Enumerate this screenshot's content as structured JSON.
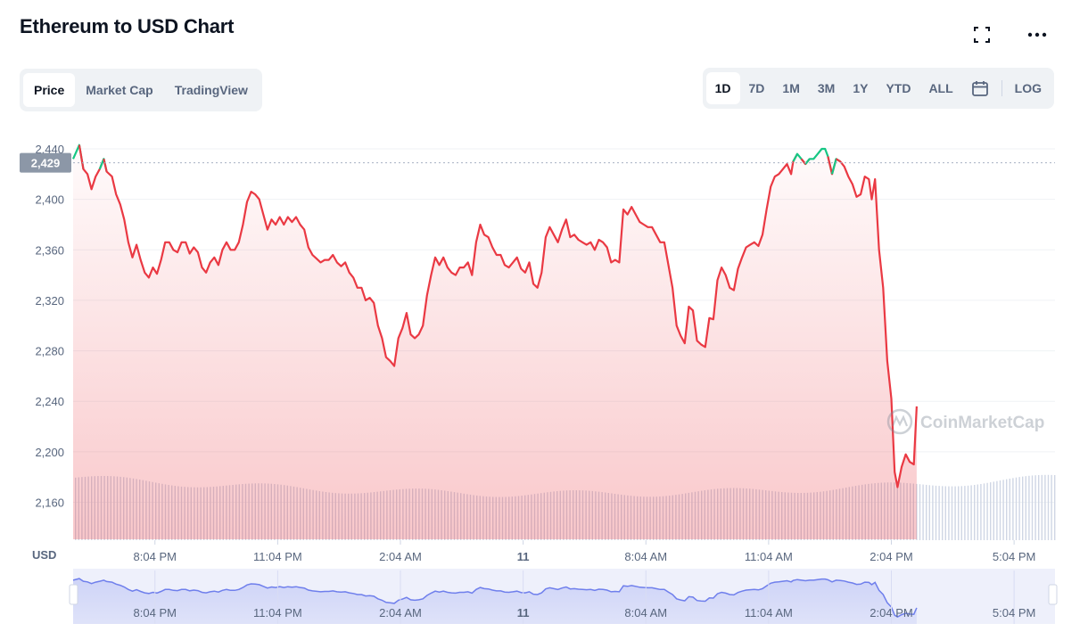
{
  "header": {
    "title": "Ethereum to USD Chart"
  },
  "tabs": [
    "Price",
    "Market Cap",
    "TradingView"
  ],
  "ranges": [
    "1D",
    "7D",
    "1M",
    "3M",
    "1Y",
    "YTD",
    "ALL"
  ],
  "log_label": "LOG",
  "icons": {
    "fullscreen": "fullscreen-icon",
    "more": "more-icon",
    "calendar": "calendar-icon"
  },
  "watermark": "CoinMarketCap",
  "colors": {
    "down": "#ea3943",
    "up": "#16c784",
    "nav": "#6f7fec"
  },
  "chart_data": {
    "type": "line",
    "currency_label": "USD",
    "current_price_label": "2,429",
    "current_price": 2429,
    "ylim": [
      2130,
      2452
    ],
    "y_ticks": [
      2160,
      2200,
      2240,
      2280,
      2320,
      2360,
      2400,
      2440
    ],
    "y_tick_labels": [
      "2,160",
      "2,200",
      "2,240",
      "2,280",
      "2,320",
      "2,360",
      "2,400",
      "2,440"
    ],
    "x_tick_labels": [
      "8:04 PM",
      "11:04 PM",
      "2:04 AM",
      "11",
      "8:04 AM",
      "11:04 AM",
      "2:04 PM",
      "5:04 PM"
    ],
    "x_tick_positions_hours": [
      2,
      5,
      8,
      11,
      14,
      17,
      20,
      23
    ],
    "x_range_hours": [
      0,
      24
    ],
    "series": [
      {
        "points": [
          [
            0.0,
            2432
          ],
          [
            0.15,
            2443
          ],
          [
            0.25,
            2424
          ],
          [
            0.35,
            2420
          ],
          [
            0.45,
            2408
          ],
          [
            0.55,
            2418
          ],
          [
            0.65,
            2424
          ],
          [
            0.75,
            2432
          ],
          [
            0.82,
            2422
          ],
          [
            0.95,
            2418
          ],
          [
            1.05,
            2404
          ],
          [
            1.15,
            2396
          ],
          [
            1.25,
            2384
          ],
          [
            1.35,
            2366
          ],
          [
            1.45,
            2354
          ],
          [
            1.55,
            2364
          ],
          [
            1.65,
            2352
          ],
          [
            1.75,
            2342
          ],
          [
            1.85,
            2338
          ],
          [
            1.95,
            2346
          ],
          [
            2.05,
            2341
          ],
          [
            2.15,
            2352
          ],
          [
            2.25,
            2366
          ],
          [
            2.35,
            2366
          ],
          [
            2.45,
            2360
          ],
          [
            2.55,
            2358
          ],
          [
            2.65,
            2366
          ],
          [
            2.75,
            2366
          ],
          [
            2.85,
            2357
          ],
          [
            2.95,
            2362
          ],
          [
            3.05,
            2358
          ],
          [
            3.15,
            2346
          ],
          [
            3.25,
            2342
          ],
          [
            3.35,
            2350
          ],
          [
            3.45,
            2354
          ],
          [
            3.55,
            2348
          ],
          [
            3.65,
            2360
          ],
          [
            3.75,
            2366
          ],
          [
            3.85,
            2360
          ],
          [
            3.95,
            2360
          ],
          [
            4.05,
            2366
          ],
          [
            4.15,
            2380
          ],
          [
            4.25,
            2398
          ],
          [
            4.35,
            2406
          ],
          [
            4.45,
            2404
          ],
          [
            4.55,
            2400
          ],
          [
            4.65,
            2388
          ],
          [
            4.75,
            2376
          ],
          [
            4.85,
            2384
          ],
          [
            4.95,
            2380
          ],
          [
            5.05,
            2386
          ],
          [
            5.15,
            2380
          ],
          [
            5.25,
            2386
          ],
          [
            5.35,
            2382
          ],
          [
            5.45,
            2386
          ],
          [
            5.55,
            2380
          ],
          [
            5.65,
            2376
          ],
          [
            5.75,
            2362
          ],
          [
            5.85,
            2356
          ],
          [
            5.95,
            2353
          ],
          [
            6.05,
            2350
          ],
          [
            6.15,
            2352
          ],
          [
            6.25,
            2352
          ],
          [
            6.35,
            2356
          ],
          [
            6.45,
            2350
          ],
          [
            6.55,
            2347
          ],
          [
            6.65,
            2350
          ],
          [
            6.75,
            2342
          ],
          [
            6.85,
            2338
          ],
          [
            6.95,
            2330
          ],
          [
            7.05,
            2330
          ],
          [
            7.15,
            2320
          ],
          [
            7.25,
            2322
          ],
          [
            7.35,
            2318
          ],
          [
            7.45,
            2300
          ],
          [
            7.55,
            2290
          ],
          [
            7.65,
            2275
          ],
          [
            7.75,
            2272
          ],
          [
            7.85,
            2268
          ],
          [
            7.95,
            2290
          ],
          [
            8.05,
            2298
          ],
          [
            8.15,
            2310
          ],
          [
            8.25,
            2293
          ],
          [
            8.35,
            2290
          ],
          [
            8.45,
            2293
          ],
          [
            8.55,
            2300
          ],
          [
            8.65,
            2324
          ],
          [
            8.75,
            2340
          ],
          [
            8.85,
            2354
          ],
          [
            8.95,
            2348
          ],
          [
            9.05,
            2354
          ],
          [
            9.15,
            2346
          ],
          [
            9.25,
            2342
          ],
          [
            9.35,
            2340
          ],
          [
            9.45,
            2346
          ],
          [
            9.55,
            2346
          ],
          [
            9.65,
            2350
          ],
          [
            9.75,
            2340
          ],
          [
            9.85,
            2366
          ],
          [
            9.95,
            2380
          ],
          [
            10.05,
            2372
          ],
          [
            10.15,
            2370
          ],
          [
            10.25,
            2362
          ],
          [
            10.35,
            2356
          ],
          [
            10.45,
            2356
          ],
          [
            10.55,
            2348
          ],
          [
            10.65,
            2346
          ],
          [
            10.75,
            2350
          ],
          [
            10.85,
            2354
          ],
          [
            10.95,
            2345
          ],
          [
            11.05,
            2342
          ],
          [
            11.15,
            2350
          ],
          [
            11.25,
            2333
          ],
          [
            11.35,
            2330
          ],
          [
            11.45,
            2342
          ],
          [
            11.55,
            2370
          ],
          [
            11.65,
            2378
          ],
          [
            11.75,
            2372
          ],
          [
            11.85,
            2366
          ],
          [
            11.95,
            2376
          ],
          [
            12.05,
            2384
          ],
          [
            12.15,
            2370
          ],
          [
            12.25,
            2372
          ],
          [
            12.35,
            2368
          ],
          [
            12.45,
            2366
          ],
          [
            12.55,
            2364
          ],
          [
            12.65,
            2366
          ],
          [
            12.75,
            2360
          ],
          [
            12.85,
            2368
          ],
          [
            12.95,
            2366
          ],
          [
            13.05,
            2362
          ],
          [
            13.15,
            2350
          ],
          [
            13.25,
            2352
          ],
          [
            13.35,
            2350
          ],
          [
            13.45,
            2392
          ],
          [
            13.55,
            2388
          ],
          [
            13.65,
            2394
          ],
          [
            13.75,
            2388
          ],
          [
            13.85,
            2382
          ],
          [
            13.95,
            2380
          ],
          [
            14.05,
            2378
          ],
          [
            14.15,
            2378
          ],
          [
            14.25,
            2372
          ],
          [
            14.35,
            2366
          ],
          [
            14.45,
            2366
          ],
          [
            14.55,
            2348
          ],
          [
            14.65,
            2330
          ],
          [
            14.75,
            2300
          ],
          [
            14.85,
            2292
          ],
          [
            14.95,
            2286
          ],
          [
            15.05,
            2315
          ],
          [
            15.15,
            2312
          ],
          [
            15.25,
            2288
          ],
          [
            15.35,
            2285
          ],
          [
            15.45,
            2283
          ],
          [
            15.55,
            2306
          ],
          [
            15.65,
            2305
          ],
          [
            15.75,
            2336
          ],
          [
            15.85,
            2346
          ],
          [
            15.95,
            2340
          ],
          [
            16.05,
            2330
          ],
          [
            16.15,
            2328
          ],
          [
            16.25,
            2345
          ],
          [
            16.35,
            2354
          ],
          [
            16.45,
            2362
          ],
          [
            16.55,
            2364
          ],
          [
            16.65,
            2366
          ],
          [
            16.75,
            2363
          ],
          [
            16.85,
            2372
          ],
          [
            16.95,
            2392
          ],
          [
            17.05,
            2410
          ],
          [
            17.15,
            2418
          ],
          [
            17.25,
            2420
          ],
          [
            17.35,
            2424
          ],
          [
            17.45,
            2428
          ],
          [
            17.55,
            2420
          ],
          [
            17.6,
            2430
          ],
          [
            17.7,
            2436
          ],
          [
            17.8,
            2432
          ],
          [
            17.9,
            2428
          ],
          [
            18.0,
            2432
          ],
          [
            18.1,
            2432
          ],
          [
            18.2,
            2436
          ],
          [
            18.3,
            2440
          ],
          [
            18.38,
            2440
          ],
          [
            18.45,
            2434
          ],
          [
            18.55,
            2420
          ],
          [
            18.65,
            2432
          ],
          [
            18.75,
            2430
          ],
          [
            18.85,
            2426
          ],
          [
            18.95,
            2418
          ],
          [
            19.05,
            2412
          ],
          [
            19.15,
            2402
          ],
          [
            19.25,
            2404
          ],
          [
            19.35,
            2418
          ],
          [
            19.45,
            2416
          ],
          [
            19.52,
            2400
          ],
          [
            19.6,
            2416
          ],
          [
            19.7,
            2360
          ],
          [
            19.8,
            2330
          ],
          [
            19.9,
            2272
          ],
          [
            20.0,
            2242
          ],
          [
            20.08,
            2184
          ],
          [
            20.15,
            2172
          ],
          [
            20.25,
            2188
          ],
          [
            20.35,
            2198
          ],
          [
            20.45,
            2192
          ],
          [
            20.55,
            2190
          ],
          [
            20.62,
            2236
          ]
        ]
      }
    ]
  }
}
